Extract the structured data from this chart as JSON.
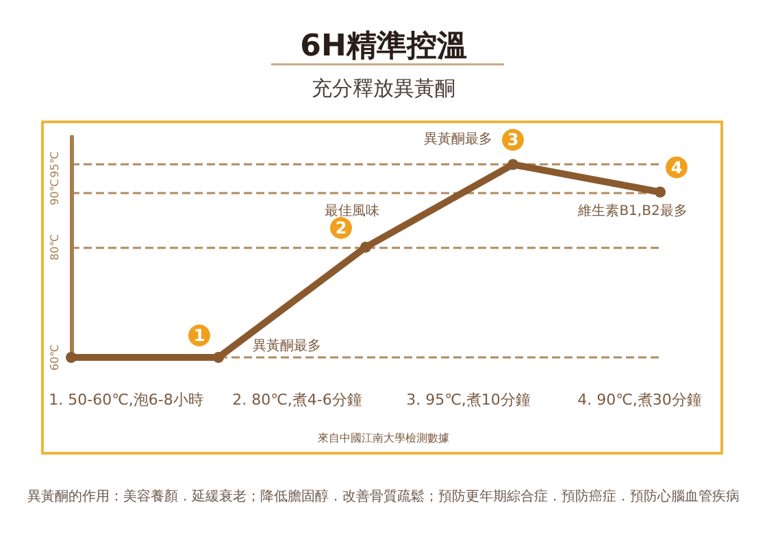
{
  "chart_data": {
    "type": "line",
    "title": "6H精準控溫",
    "subtitle": "充分釋放異黃酮",
    "categories": [
      null,
      null,
      null,
      null,
      null
    ],
    "series": [
      {
        "color": "#8a5a2e",
        "values": [
          60,
          60,
          80,
          95,
          90
        ]
      }
    ],
    "ylim": [
      60,
      100
    ],
    "yticks": [
      {
        "value": 60,
        "label": "60℃"
      },
      {
        "value": 80,
        "label": "80℃"
      },
      {
        "value": 90,
        "label": "90℃"
      },
      {
        "value": 95,
        "label": "95℃"
      }
    ],
    "grid": "y",
    "marker": "circle",
    "line_style": "solid",
    "annotations": [
      "1",
      "異黃酮最多",
      "2",
      "最佳風味",
      "3",
      "異黃酮最多",
      "4",
      "維生素B1,B2最多",
      "1. 50-60℃,泡6-8小時",
      "2. 80℃,煮4-6分鐘",
      "3. 95℃,煮10分鐘",
      "4. 90℃,煮30分鐘",
      "來自中國江南大學檢測數據",
      "異黃酮的作用：美容養顏．延緩衰老；降低膽固醇．改善骨質疏鬆；預防更年期綜合症．預防癌症．預防心腦血管疾病"
    ]
  }
}
